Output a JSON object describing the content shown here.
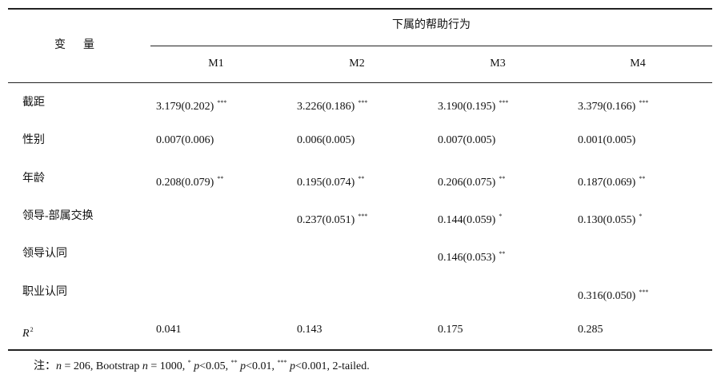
{
  "header": {
    "variable": "变量",
    "group": "下属的帮助行为",
    "models": [
      "M1",
      "M2",
      "M3",
      "M4"
    ]
  },
  "table": {
    "rows": [
      {
        "label": "截距",
        "cells": [
          {
            "estimate": "3.179(0.202)",
            "stars": "***"
          },
          {
            "estimate": "3.226(0.186)",
            "stars": "***"
          },
          {
            "estimate": "3.190(0.195)",
            "stars": "***"
          },
          {
            "estimate": "3.379(0.166)",
            "stars": "***"
          }
        ]
      },
      {
        "label": "性别",
        "cells": [
          {
            "estimate": "0.007(0.006)"
          },
          {
            "estimate": "0.006(0.005)"
          },
          {
            "estimate": "0.007(0.005)"
          },
          {
            "estimate": "0.001(0.005)"
          }
        ]
      },
      {
        "label": "年龄",
        "cells": [
          {
            "estimate": "0.208(0.079)",
            "stars": "**"
          },
          {
            "estimate": "0.195(0.074)",
            "stars": "**"
          },
          {
            "estimate": "0.206(0.075)",
            "stars": "**"
          },
          {
            "estimate": "0.187(0.069)",
            "stars": "**"
          }
        ]
      },
      {
        "label": "领导-部属交换",
        "cells": [
          null,
          {
            "estimate": "0.237(0.051)",
            "stars": "***"
          },
          {
            "estimate": "0.144(0.059)",
            "stars": "*"
          },
          {
            "estimate": "0.130(0.055)",
            "stars": "*"
          }
        ]
      },
      {
        "label": "领导认同",
        "cells": [
          null,
          null,
          {
            "estimate": "0.146(0.053)",
            "stars": "**"
          },
          null
        ]
      },
      {
        "label": "职业认同",
        "cells": [
          null,
          null,
          null,
          {
            "estimate": "0.316(0.050)",
            "stars": "***"
          }
        ]
      },
      {
        "label": "R",
        "label_sup": "2",
        "cells": [
          {
            "estimate": "0.041"
          },
          {
            "estimate": "0.143"
          },
          {
            "estimate": "0.175"
          },
          {
            "estimate": "0.285"
          }
        ]
      }
    ]
  },
  "note": [
    "注：",
    "n",
    " = 206, Bootstrap ",
    "n",
    " = 1000, ",
    "*",
    " ",
    "p",
    "<0.05, ",
    "**",
    " ",
    "p",
    "<0.01, ",
    "***",
    " ",
    "p",
    "<0.001, 2-tailed."
  ]
}
